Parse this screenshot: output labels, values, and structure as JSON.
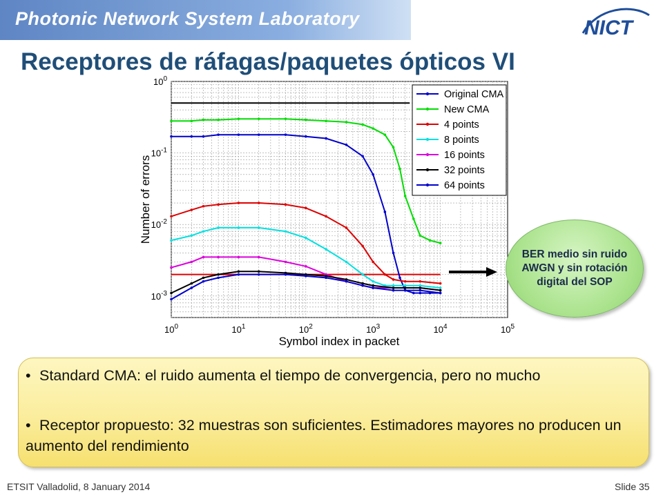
{
  "header": {
    "lab_title": "Photonic Network System Laboratory",
    "logo_text": "NICT"
  },
  "slide": {
    "title": "Receptores de ráfagas/paquetes ópticos VI"
  },
  "callout": {
    "text": "BER medio sin ruido AWGN y sin rotación digital del SOP"
  },
  "notes": [
    {
      "bullet": "•",
      "text": "Standard CMA: el ruido aumenta el tiempo de convergencia, pero no mucho"
    },
    {
      "bullet": "•",
      "text": "Receptor propuesto: 32 muestras son suficientes. Estimadores mayores no producen un aumento del rendimiento"
    }
  ],
  "footer": {
    "left": "ETSIT Valladolid, 8 January 2014",
    "right": "Slide 35"
  },
  "chart_data": {
    "type": "line",
    "xscale": "log",
    "yscale": "log",
    "xlim": [
      1,
      100000
    ],
    "ylim": [
      0.0005,
      1
    ],
    "xlabel": "Symbol index in packet",
    "ylabel": "Number of errors",
    "grid": true,
    "legend_position": "top-right",
    "x_ticks": [
      {
        "base": "10",
        "exp": "0"
      },
      {
        "base": "10",
        "exp": "1"
      },
      {
        "base": "10",
        "exp": "2"
      },
      {
        "base": "10",
        "exp": "3"
      },
      {
        "base": "10",
        "exp": "4"
      },
      {
        "base": "10",
        "exp": "5"
      }
    ],
    "y_ticks": [
      {
        "base": "10",
        "exp": "0"
      },
      {
        "base": "10",
        "exp": "-1"
      },
      {
        "base": "10",
        "exp": "-2"
      },
      {
        "base": "10",
        "exp": "-3"
      }
    ],
    "reference_lines": [
      {
        "y": 0.5,
        "x_range": [
          1,
          3500
        ],
        "color": "#000000"
      },
      {
        "y": 0.002,
        "x_range": [
          1,
          10000
        ],
        "color": "#e00000"
      }
    ],
    "series": [
      {
        "name": "Original CMA",
        "color": "#0000cc",
        "x": [
          1,
          2,
          3,
          5,
          10,
          20,
          50,
          100,
          200,
          400,
          700,
          1000,
          1500,
          2000,
          2500,
          3000,
          4000,
          5000,
          7000,
          10000
        ],
        "y": [
          0.17,
          0.17,
          0.17,
          0.18,
          0.18,
          0.18,
          0.18,
          0.17,
          0.16,
          0.13,
          0.09,
          0.05,
          0.015,
          0.004,
          0.0018,
          0.0012,
          0.0011,
          0.0011,
          0.0011,
          0.0011
        ]
      },
      {
        "name": "New CMA",
        "color": "#00dd00",
        "x": [
          1,
          2,
          3,
          5,
          10,
          20,
          50,
          100,
          200,
          400,
          700,
          1000,
          1500,
          2000,
          2500,
          3000,
          4000,
          5000,
          7000,
          10000
        ],
        "y": [
          0.28,
          0.28,
          0.29,
          0.29,
          0.3,
          0.3,
          0.3,
          0.29,
          0.28,
          0.27,
          0.25,
          0.22,
          0.18,
          0.12,
          0.06,
          0.025,
          0.012,
          0.007,
          0.006,
          0.0055
        ]
      },
      {
        "name": "4 points",
        "color": "#dd0000",
        "x": [
          1,
          2,
          3,
          5,
          10,
          20,
          50,
          100,
          200,
          400,
          700,
          1000,
          1500,
          2000,
          3000,
          5000,
          10000
        ],
        "y": [
          0.013,
          0.016,
          0.018,
          0.019,
          0.02,
          0.02,
          0.019,
          0.017,
          0.013,
          0.009,
          0.005,
          0.003,
          0.002,
          0.0017,
          0.0016,
          0.0016,
          0.0015
        ]
      },
      {
        "name": "8 points",
        "color": "#00e0e0",
        "x": [
          1,
          2,
          3,
          5,
          10,
          20,
          50,
          100,
          200,
          400,
          700,
          1000,
          1500,
          2000,
          3000,
          5000,
          10000
        ],
        "y": [
          0.006,
          0.007,
          0.008,
          0.009,
          0.009,
          0.009,
          0.008,
          0.0065,
          0.0045,
          0.003,
          0.002,
          0.0016,
          0.0014,
          0.0014,
          0.0014,
          0.0014,
          0.0013
        ]
      },
      {
        "name": "16 points",
        "color": "#dd00dd",
        "x": [
          1,
          2,
          3,
          5,
          10,
          20,
          50,
          100,
          200,
          400,
          700,
          1000,
          2000,
          3000,
          5000,
          10000
        ],
        "y": [
          0.0025,
          0.003,
          0.0035,
          0.0035,
          0.0035,
          0.0035,
          0.003,
          0.0026,
          0.002,
          0.0016,
          0.0014,
          0.0013,
          0.0013,
          0.0013,
          0.0013,
          0.0012
        ]
      },
      {
        "name": "32 points",
        "color": "#000000",
        "x": [
          1,
          2,
          3,
          5,
          10,
          20,
          50,
          100,
          200,
          400,
          700,
          1000,
          2000,
          3000,
          5000,
          10000
        ],
        "y": [
          0.0011,
          0.0015,
          0.0018,
          0.002,
          0.0022,
          0.0022,
          0.0021,
          0.002,
          0.0019,
          0.0017,
          0.0015,
          0.0014,
          0.0013,
          0.0013,
          0.0013,
          0.0012
        ]
      },
      {
        "name": "64 points",
        "color": "#0000cc",
        "x": [
          1,
          2,
          3,
          5,
          10,
          20,
          50,
          100,
          200,
          400,
          700,
          1000,
          2000,
          3000,
          5000,
          10000
        ],
        "y": [
          0.0009,
          0.0013,
          0.0016,
          0.0018,
          0.002,
          0.002,
          0.002,
          0.0019,
          0.0018,
          0.0016,
          0.0014,
          0.0013,
          0.0012,
          0.0012,
          0.0012,
          0.0011
        ]
      }
    ]
  }
}
